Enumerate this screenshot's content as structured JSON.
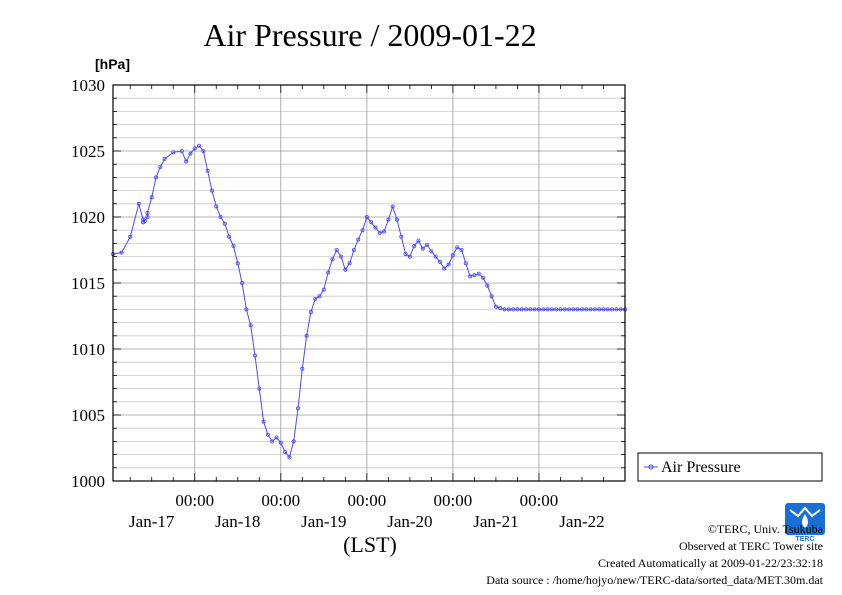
{
  "chart_data": {
    "type": "line",
    "title": "Air Pressure / 2009-01-22",
    "ylabel": "[hPa]",
    "xlabel": "(LST)",
    "ylim": [
      1000,
      1030
    ],
    "yticks": [
      "1000",
      "1005",
      "1010",
      "1015",
      "1020",
      "1025",
      "1030"
    ],
    "xlim": [
      -0.95,
      5.0
    ],
    "x_time_ticks": [
      "00:00",
      "00:00",
      "00:00",
      "00:00",
      "00:00"
    ],
    "x_date_labels": [
      "Jan-17",
      "Jan-18",
      "Jan-19",
      "Jan-20",
      "Jan-21",
      "Jan-22"
    ],
    "grid": true,
    "legend_position": "right",
    "series": [
      {
        "name": "Air Pressure",
        "color": "#4a4aff",
        "x": [
          -0.95,
          -0.85,
          -0.75,
          -0.65,
          -0.55,
          -0.6,
          -0.58,
          -0.6,
          -0.6,
          -0.55,
          -0.5,
          -0.45,
          -0.4,
          -0.35,
          -0.25,
          -0.15,
          -0.1,
          -0.05,
          0.0,
          0.05,
          0.1,
          0.15,
          0.2,
          0.25,
          0.3,
          0.35,
          0.4,
          0.45,
          0.5,
          0.55,
          0.6,
          0.65,
          0.7,
          0.75,
          0.8,
          0.85,
          0.9,
          0.95,
          1.0,
          1.05,
          1.1,
          1.15,
          1.2,
          1.25,
          1.3,
          1.35,
          1.4,
          1.45,
          1.5,
          1.55,
          1.6,
          1.65,
          1.7,
          1.75,
          1.8,
          1.85,
          1.9,
          1.95,
          2.0,
          2.05,
          2.1,
          2.15,
          2.2,
          2.25,
          2.3,
          2.35,
          2.4,
          2.45,
          2.5,
          2.55,
          2.6,
          2.65,
          2.7,
          2.75,
          2.8,
          2.85,
          2.9,
          2.95,
          3.0,
          3.05,
          3.1,
          3.15,
          3.2,
          3.25,
          3.3,
          3.35,
          3.4,
          3.45,
          3.5,
          3.55,
          3.6,
          3.65,
          3.7,
          3.75,
          3.8,
          3.85,
          3.9,
          3.95,
          4.0,
          4.05,
          4.1,
          4.15,
          4.2,
          4.25,
          4.3,
          4.35,
          4.4,
          4.45,
          4.5,
          4.55,
          4.6,
          4.65,
          4.7,
          4.75,
          4.8,
          4.85,
          4.9,
          4.95,
          5.0
        ],
        "y": [
          1017.2,
          1017.3,
          1018.5,
          1021.0,
          1020.0,
          1019.8,
          1019.7,
          1019.6,
          1019.6,
          1020.3,
          1021.5,
          1023.0,
          1023.8,
          1024.4,
          1024.9,
          1025.0,
          1024.2,
          1024.8,
          1025.2,
          1025.4,
          1025.0,
          1023.5,
          1022.0,
          1020.8,
          1020.0,
          1019.5,
          1018.5,
          1017.8,
          1016.5,
          1015.0,
          1013.0,
          1011.8,
          1009.5,
          1007.0,
          1004.5,
          1003.5,
          1003.0,
          1003.3,
          1002.9,
          1002.2,
          1001.8,
          1003.0,
          1005.5,
          1008.5,
          1011.0,
          1012.8,
          1013.8,
          1014.0,
          1014.5,
          1015.8,
          1016.8,
          1017.5,
          1017.0,
          1016.0,
          1016.5,
          1017.5,
          1018.3,
          1019.0,
          1020.0,
          1019.6,
          1019.2,
          1018.8,
          1018.9,
          1019.8,
          1020.8,
          1019.8,
          1018.5,
          1017.2,
          1017.0,
          1017.8,
          1018.2,
          1017.6,
          1017.9,
          1017.4,
          1017.0,
          1016.6,
          1016.1,
          1016.4,
          1017.1,
          1017.7,
          1017.5,
          1016.5,
          1015.5,
          1015.6,
          1015.7,
          1015.4,
          1014.8,
          1014.0,
          1013.2,
          1013.1,
          1013.0,
          1013.0,
          1013.0,
          1013.0,
          1013.0,
          1013.0,
          1013.0,
          1013.0,
          1013.0,
          1013.0,
          1013.0,
          1013.0,
          1013.0,
          1013.0,
          1013.0,
          1013.0,
          1013.0,
          1013.0,
          1013.0,
          1013.0,
          1013.0,
          1013.0,
          1013.0,
          1013.0,
          1013.0,
          1013.0,
          1013.0,
          1013.0,
          1013.0
        ]
      }
    ]
  },
  "footer": {
    "copyright": "©TERC, Univ. Tsukuba",
    "observed": "Observed at TERC Tower site",
    "created": "Created Automatically at 2009-01-22/23:32:18",
    "source": "Data source : /home/hojyo/new/TERC-data/sorted_data/MET.30m.dat"
  },
  "logo": {
    "text": "TERC",
    "color": "#1a6fd6"
  }
}
